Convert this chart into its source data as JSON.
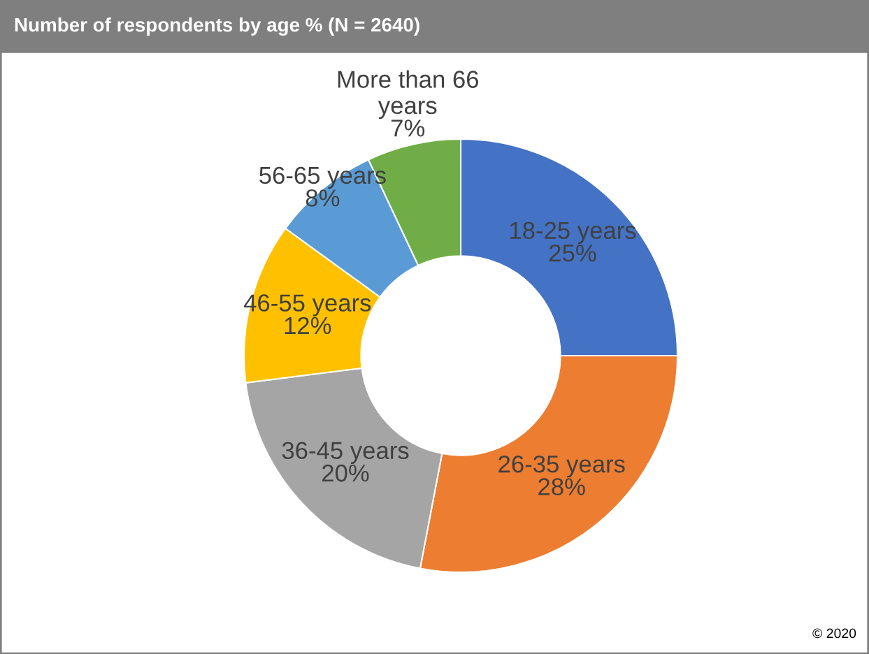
{
  "chart_data": {
    "type": "donut",
    "title": "Number of respondents by age % (N = 2640)",
    "categories": [
      "18-25 years",
      "26-35 years",
      "36-45 years",
      "46-55 years",
      "56-65 years",
      "More than 66 years"
    ],
    "values": [
      25,
      28,
      20,
      12,
      8,
      7
    ],
    "value_labels": [
      "25%",
      "28%",
      "20%",
      "12%",
      "8%",
      "7%"
    ],
    "colors": [
      "#4472c4",
      "#ed7d31",
      "#a5a5a5",
      "#ffc000",
      "#5b9bd5",
      "#70ad47"
    ],
    "annotations": [
      "© 2020"
    ],
    "legend": false
  }
}
